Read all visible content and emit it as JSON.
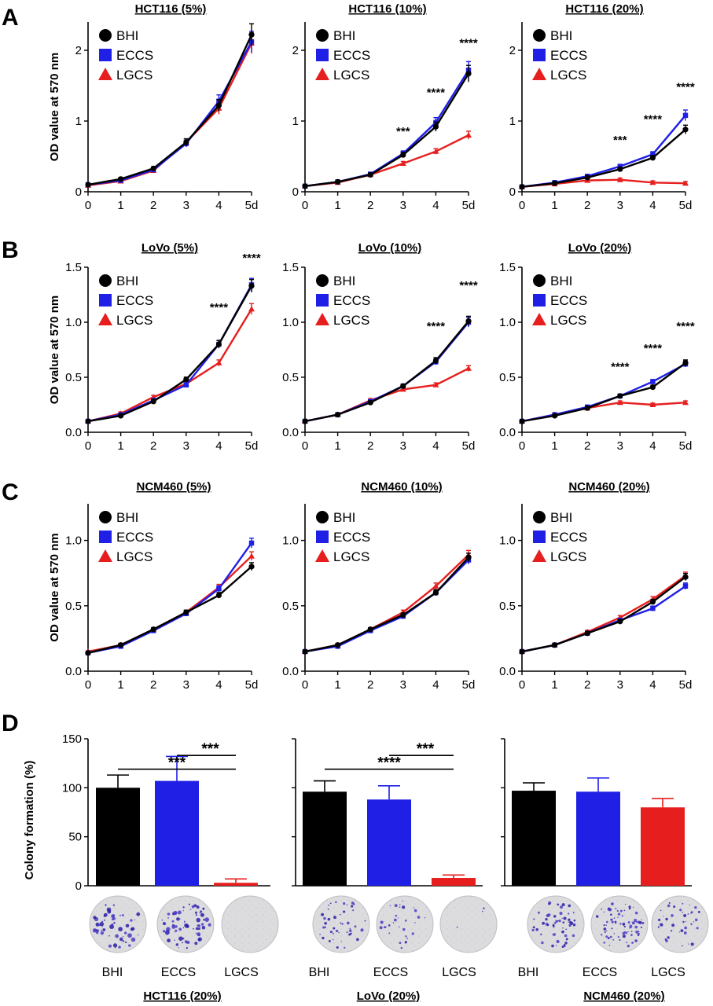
{
  "panel_labels": [
    "A",
    "B",
    "C",
    "D"
  ],
  "legend_labels": [
    "BHI",
    "ECCS",
    "LGCS"
  ],
  "series_colors": {
    "BHI": "#000000",
    "ECCS": "#1f1fe6",
    "LGCS": "#e61e1e"
  },
  "chart_data": [
    {
      "type": "line",
      "panel": "A",
      "title": "HCT116 (5%)",
      "ylabel": "OD value at 570 nm",
      "x": [
        "0",
        "1",
        "2",
        "3",
        "4",
        "5d"
      ],
      "ylim": [
        0,
        2.4
      ],
      "yticks": [
        "0",
        "1",
        "2"
      ],
      "series": [
        {
          "name": "BHI",
          "values": [
            0.1,
            0.18,
            0.33,
            0.7,
            1.22,
            2.22
          ]
        },
        {
          "name": "ECCS",
          "values": [
            0.1,
            0.16,
            0.31,
            0.68,
            1.28,
            2.12
          ]
        },
        {
          "name": "LGCS",
          "values": [
            0.09,
            0.15,
            0.3,
            0.7,
            1.18,
            2.1
          ]
        }
      ],
      "annotations": []
    },
    {
      "type": "line",
      "panel": "A",
      "title": "HCT116 (10%)",
      "ylabel": "",
      "x": [
        "0",
        "1",
        "2",
        "3",
        "4",
        "5d"
      ],
      "ylim": [
        0,
        2.4
      ],
      "yticks": [
        "0",
        "1",
        "2"
      ],
      "series": [
        {
          "name": "BHI",
          "values": [
            0.08,
            0.14,
            0.24,
            0.52,
            0.92,
            1.67
          ]
        },
        {
          "name": "ECCS",
          "values": [
            0.08,
            0.14,
            0.25,
            0.54,
            0.98,
            1.72
          ]
        },
        {
          "name": "LGCS",
          "values": [
            0.08,
            0.13,
            0.24,
            0.4,
            0.57,
            0.8
          ]
        }
      ],
      "annotations": [
        {
          "x": 3,
          "y": 0.8,
          "text": "***"
        },
        {
          "x": 4,
          "y": 1.35,
          "text": "****"
        },
        {
          "x": 5,
          "y": 2.05,
          "text": "****"
        }
      ]
    },
    {
      "type": "line",
      "panel": "A",
      "title": "HCT116 (20%)",
      "ylabel": "",
      "x": [
        "0",
        "1",
        "2",
        "3",
        "4",
        "5d"
      ],
      "ylim": [
        0,
        2.4
      ],
      "yticks": [
        "0",
        "1",
        "2"
      ],
      "series": [
        {
          "name": "BHI",
          "values": [
            0.07,
            0.12,
            0.2,
            0.32,
            0.48,
            0.88
          ]
        },
        {
          "name": "ECCS",
          "values": [
            0.07,
            0.13,
            0.22,
            0.36,
            0.53,
            1.08
          ]
        },
        {
          "name": "LGCS",
          "values": [
            0.07,
            0.11,
            0.16,
            0.17,
            0.13,
            0.12
          ]
        }
      ],
      "annotations": [
        {
          "x": 3,
          "y": 0.68,
          "text": "***"
        },
        {
          "x": 4,
          "y": 0.97,
          "text": "****"
        },
        {
          "x": 5,
          "y": 1.43,
          "text": "****"
        }
      ]
    },
    {
      "type": "line",
      "panel": "B",
      "title": "LoVo (5%)",
      "ylabel": "OD value at 570 nm",
      "x": [
        "0",
        "1",
        "2",
        "3",
        "4",
        "5d"
      ],
      "ylim": [
        0,
        1.5
      ],
      "yticks": [
        "0.0",
        "0.5",
        "1.0",
        "1.5"
      ],
      "series": [
        {
          "name": "BHI",
          "values": [
            0.1,
            0.15,
            0.28,
            0.48,
            0.8,
            1.33
          ]
        },
        {
          "name": "ECCS",
          "values": [
            0.1,
            0.16,
            0.29,
            0.43,
            0.8,
            1.34
          ]
        },
        {
          "name": "LGCS",
          "values": [
            0.1,
            0.17,
            0.32,
            0.44,
            0.63,
            1.12
          ]
        }
      ],
      "annotations": [
        {
          "x": 4,
          "y": 1.1,
          "text": "****"
        },
        {
          "x": 5,
          "y": 1.55,
          "text": "****"
        }
      ]
    },
    {
      "type": "line",
      "panel": "B",
      "title": "LoVo (10%)",
      "ylabel": "",
      "x": [
        "0",
        "1",
        "2",
        "3",
        "4",
        "5d"
      ],
      "ylim": [
        0,
        1.5
      ],
      "yticks": [
        "0.0",
        "0.5",
        "1.0",
        "1.5"
      ],
      "series": [
        {
          "name": "BHI",
          "values": [
            0.1,
            0.16,
            0.27,
            0.42,
            0.65,
            1.01
          ]
        },
        {
          "name": "ECCS",
          "values": [
            0.1,
            0.16,
            0.28,
            0.42,
            0.64,
            1.0
          ]
        },
        {
          "name": "LGCS",
          "values": [
            0.1,
            0.16,
            0.29,
            0.39,
            0.43,
            0.58
          ]
        }
      ],
      "annotations": [
        {
          "x": 4,
          "y": 0.93,
          "text": "****"
        },
        {
          "x": 5,
          "y": 1.3,
          "text": "****"
        }
      ]
    },
    {
      "type": "line",
      "panel": "B",
      "title": "LoVo (20%)",
      "ylabel": "",
      "x": [
        "0",
        "1",
        "2",
        "3",
        "4",
        "5d"
      ],
      "ylim": [
        0,
        1.5
      ],
      "yticks": [
        "0.0",
        "0.5",
        "1.0",
        "1.5"
      ],
      "series": [
        {
          "name": "BHI",
          "values": [
            0.1,
            0.15,
            0.22,
            0.33,
            0.41,
            0.63
          ]
        },
        {
          "name": "ECCS",
          "values": [
            0.1,
            0.16,
            0.23,
            0.33,
            0.46,
            0.62
          ]
        },
        {
          "name": "LGCS",
          "values": [
            0.1,
            0.16,
            0.22,
            0.27,
            0.25,
            0.27
          ]
        }
      ],
      "annotations": [
        {
          "x": 3,
          "y": 0.56,
          "text": "****"
        },
        {
          "x": 4,
          "y": 0.73,
          "text": "****"
        },
        {
          "x": 5,
          "y": 0.93,
          "text": "****"
        }
      ]
    },
    {
      "type": "line",
      "panel": "C",
      "title": "NCM460 (5%)",
      "ylabel": "OD value at 570 nm",
      "x": [
        "0",
        "1",
        "2",
        "3",
        "4",
        "5d"
      ],
      "ylim": [
        0,
        1.28
      ],
      "yticks": [
        "0.0",
        "0.5",
        "1.0"
      ],
      "series": [
        {
          "name": "BHI",
          "values": [
            0.14,
            0.2,
            0.32,
            0.45,
            0.58,
            0.8
          ]
        },
        {
          "name": "ECCS",
          "values": [
            0.14,
            0.19,
            0.31,
            0.44,
            0.63,
            0.98
          ]
        },
        {
          "name": "LGCS",
          "values": [
            0.15,
            0.2,
            0.32,
            0.45,
            0.64,
            0.88
          ]
        }
      ],
      "annotations": []
    },
    {
      "type": "line",
      "panel": "C",
      "title": "NCM460 (10%)",
      "ylabel": "",
      "x": [
        "0",
        "1",
        "2",
        "3",
        "4",
        "5d"
      ],
      "ylim": [
        0,
        1.28
      ],
      "yticks": [
        "0.0",
        "0.5",
        "1.0"
      ],
      "series": [
        {
          "name": "BHI",
          "values": [
            0.15,
            0.2,
            0.32,
            0.43,
            0.6,
            0.87
          ]
        },
        {
          "name": "ECCS",
          "values": [
            0.15,
            0.19,
            0.31,
            0.42,
            0.6,
            0.85
          ]
        },
        {
          "name": "LGCS",
          "values": [
            0.15,
            0.2,
            0.32,
            0.45,
            0.65,
            0.89
          ]
        }
      ],
      "annotations": []
    },
    {
      "type": "line",
      "panel": "C",
      "title": "NCM460 (20%)",
      "ylabel": "",
      "x": [
        "0",
        "1",
        "2",
        "3",
        "4",
        "5d"
      ],
      "ylim": [
        0,
        1.28
      ],
      "yticks": [
        "0.0",
        "0.5",
        "1.0"
      ],
      "series": [
        {
          "name": "BHI",
          "values": [
            0.15,
            0.2,
            0.29,
            0.38,
            0.53,
            0.72
          ]
        },
        {
          "name": "ECCS",
          "values": [
            0.15,
            0.2,
            0.29,
            0.39,
            0.48,
            0.65
          ]
        },
        {
          "name": "LGCS",
          "values": [
            0.15,
            0.2,
            0.3,
            0.41,
            0.55,
            0.73
          ]
        }
      ],
      "annotations": []
    },
    {
      "type": "bar",
      "panel": "D",
      "title": "HCT116 (20%)",
      "ylabel": "Colony formation (%)",
      "categories": [
        "BHI",
        "ECCS",
        "LGCS"
      ],
      "values": [
        100,
        107,
        3
      ],
      "errors": [
        13,
        25,
        4
      ],
      "ylim": [
        0,
        150
      ],
      "yticks": [
        "0",
        "50",
        "100",
        "150"
      ],
      "significance": [
        {
          "from": 1,
          "to": 2,
          "text": "***"
        },
        {
          "from": 0,
          "to": 2,
          "text": "***"
        }
      ]
    },
    {
      "type": "bar",
      "panel": "D",
      "title": "LoVo (20%)",
      "ylabel": "",
      "categories": [
        "BHI",
        "ECCS",
        "LGCS"
      ],
      "values": [
        96,
        88,
        8
      ],
      "errors": [
        11,
        14,
        3
      ],
      "ylim": [
        0,
        150
      ],
      "yticks": [],
      "significance": [
        {
          "from": 1,
          "to": 2,
          "text": "***"
        },
        {
          "from": 0,
          "to": 2,
          "text": "****"
        }
      ]
    },
    {
      "type": "bar",
      "panel": "D",
      "title": "NCM460 (20%)",
      "ylabel": "",
      "categories": [
        "BHI",
        "ECCS",
        "LGCS"
      ],
      "values": [
        97,
        96,
        80
      ],
      "errors": [
        8,
        14,
        9
      ],
      "ylim": [
        0,
        150
      ],
      "yticks": [],
      "significance": []
    }
  ]
}
